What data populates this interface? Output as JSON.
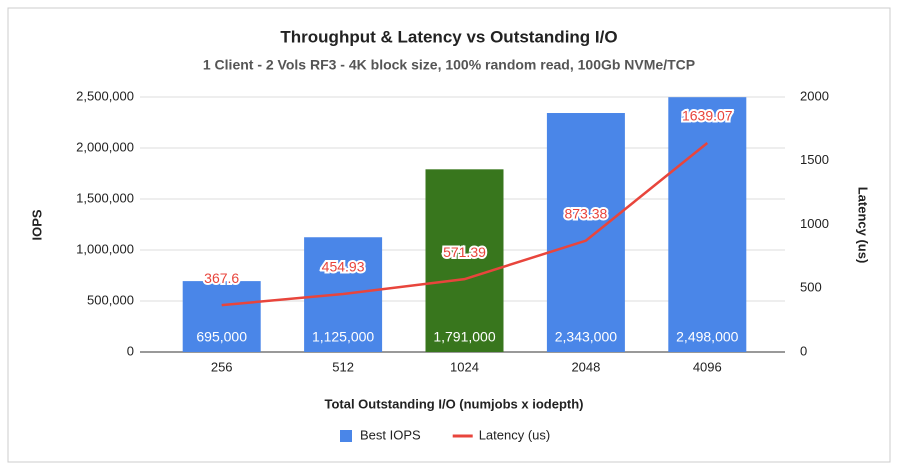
{
  "chart_data": {
    "type": "combo",
    "title": "Throughput & Latency vs Outstanding I/O",
    "subtitle": "1 Client - 2 Vols RF3 - 4K block size, 100% random read, 100Gb NVMe/TCP",
    "x_label": "Total Outstanding I/O (numjobs x iodepth)",
    "y_label": "IOPS",
    "y2_label": "Latency (us)",
    "categories": [
      "256",
      "512",
      "1024",
      "2048",
      "4096"
    ],
    "series": [
      {
        "name": "Best IOPS",
        "type": "bar",
        "color": "#4a86e8",
        "colors": [
          "#4a86e8",
          "#4a86e8",
          "#38761d",
          "#4a86e8",
          "#4a86e8"
        ],
        "values": [
          695000,
          1125000,
          1791000,
          2343000,
          2498000
        ],
        "value_labels": [
          "695,000",
          "1,125,000",
          "1,791,000",
          "2,343,000",
          "2,498,000"
        ]
      },
      {
        "name": "Latency (us)",
        "type": "line",
        "axis": "y2",
        "color": "#e8453c",
        "values": [
          367.6,
          454.93,
          571.39,
          873.38,
          1639.07
        ]
      }
    ],
    "ylim": [
      0,
      2500000
    ],
    "yticks": [
      0,
      {
        "value": 500000,
        "label": "500,000"
      },
      {
        "value": 1000000,
        "label": "1,000,000"
      },
      {
        "value": 1500000,
        "label": "1,500,000"
      },
      {
        "value": 2000000,
        "label": "2,000,000"
      },
      {
        "value": 2500000,
        "label": "2,500,000"
      }
    ],
    "y2lim": [
      0,
      2000
    ],
    "y2ticks": [
      0,
      500,
      1000,
      1500,
      2000
    ],
    "grid": true,
    "legend": "bottom"
  }
}
